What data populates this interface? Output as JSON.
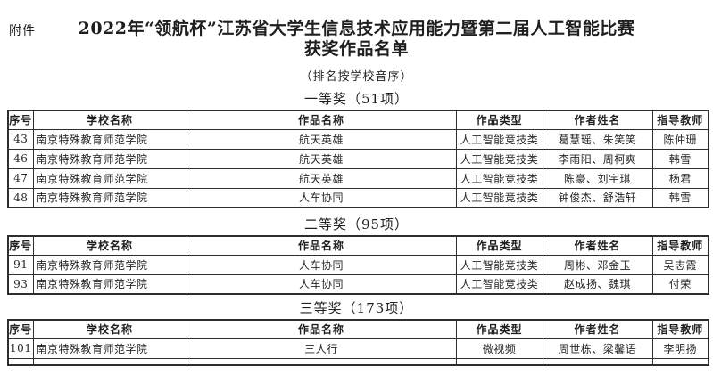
{
  "page": {
    "attachment_label": "附件",
    "title_line1": "2022年“领航杯”江苏省大学生信息技术应用能力暨第二届人工智能比赛",
    "title_line2": "获奖作品名单",
    "subtitle": "（排名按学校音序）"
  },
  "table": {
    "columns": [
      "序号",
      "学校名称",
      "作品名称",
      "作品类型",
      "作者姓名",
      "指导教师"
    ]
  },
  "sections": [
    {
      "heading": "一等奖（51项）",
      "rows": [
        [
          "43",
          "南京特殊教育师范学院",
          "航天英雄",
          "人工智能竞技类",
          "葛慧瑶、朱笑笑",
          "陈仲珊"
        ],
        [
          "46",
          "南京特殊教育师范学院",
          "航天英雄",
          "人工智能竞技类",
          "李雨阳、周柯爽",
          "韩雪"
        ],
        [
          "47",
          "南京特殊教育师范学院",
          "航天英雄",
          "人工智能竞技类",
          "陈豪、刘宇琪",
          "杨君"
        ],
        [
          "48",
          "南京特殊教育师范学院",
          "人车协同",
          "人工智能竞技类",
          "钟俊杰、舒浩轩",
          "韩雪"
        ]
      ],
      "partial_next_row": false
    },
    {
      "heading": "二等奖（95项）",
      "rows": [
        [
          "91",
          "南京特殊教育师范学院",
          "人车协同",
          "人工智能竞技类",
          "周彬、邓金玉",
          "吴志霞"
        ],
        [
          "93",
          "南京特殊教育师范学院",
          "人车协同",
          "人工智能竞技类",
          "赵成扬、魏琪",
          "付荣"
        ]
      ],
      "partial_next_row": false
    },
    {
      "heading": "三等奖（173项）",
      "rows": [
        [
          "101",
          "南京特殊教育师范学院",
          "三人行",
          "微视频",
          "周世栋、梁馨语",
          "李明扬"
        ]
      ],
      "partial_next_row": true
    }
  ],
  "colors": {
    "background": "#ffffff",
    "text": "#1f1f1f",
    "border": "#2e2e2e"
  }
}
